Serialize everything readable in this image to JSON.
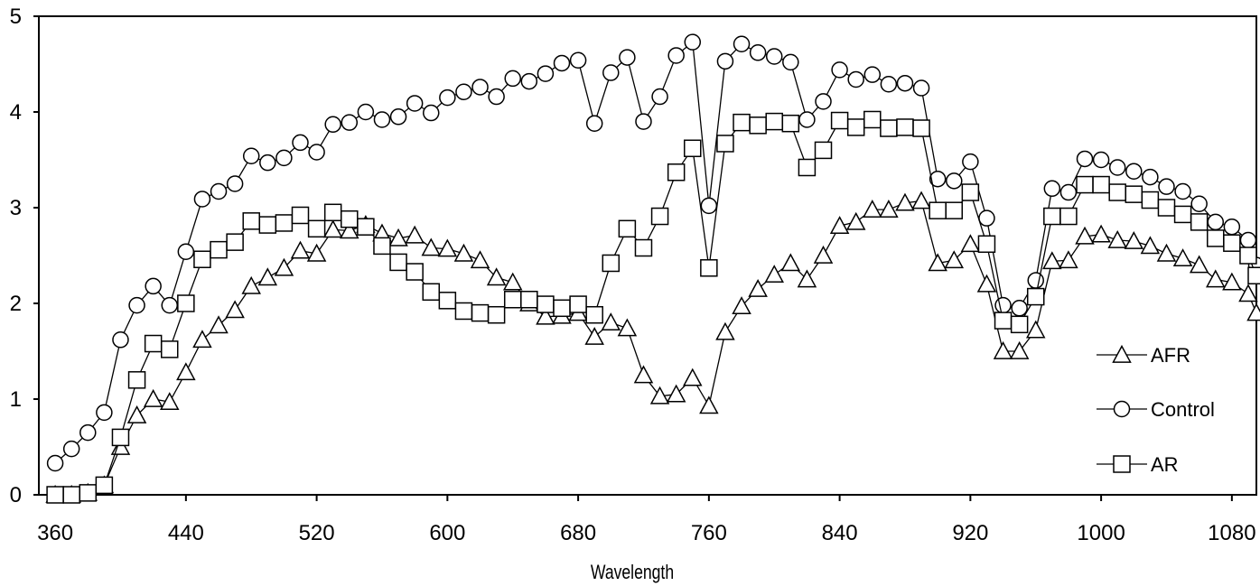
{
  "chart_data": {
    "type": "line",
    "title": "",
    "xlabel": "Wavelength",
    "ylabel": "",
    "xlim": [
      350,
      1095
    ],
    "ylim": [
      0,
      5
    ],
    "xticks": [
      360,
      440,
      520,
      600,
      680,
      760,
      840,
      920,
      1000,
      1080
    ],
    "yticks": [
      0,
      1,
      2,
      3,
      4,
      5
    ],
    "grid": false,
    "legend_position": "right",
    "series": [
      {
        "name": "AFR",
        "marker": "triangle",
        "x": [
          360,
          370,
          380,
          390,
          400,
          410,
          420,
          430,
          440,
          450,
          460,
          470,
          480,
          490,
          500,
          510,
          520,
          530,
          540,
          550,
          560,
          570,
          580,
          590,
          600,
          610,
          620,
          630,
          640,
          650,
          660,
          670,
          680,
          690,
          700,
          710,
          720,
          730,
          740,
          750,
          760,
          770,
          780,
          790,
          800,
          810,
          820,
          830,
          840,
          850,
          860,
          870,
          880,
          890,
          900,
          910,
          920,
          930,
          940,
          950,
          960,
          970,
          980,
          990,
          1000,
          1010,
          1020,
          1030,
          1040,
          1050,
          1060,
          1070,
          1080,
          1090,
          1095
        ],
        "y": [
          0.0,
          0.0,
          0.02,
          0.1,
          0.5,
          0.83,
          1.0,
          0.97,
          1.28,
          1.62,
          1.77,
          1.93,
          2.18,
          2.27,
          2.37,
          2.55,
          2.52,
          2.77,
          2.76,
          2.82,
          2.73,
          2.68,
          2.71,
          2.58,
          2.57,
          2.52,
          2.45,
          2.27,
          2.22,
          2.0,
          1.86,
          1.87,
          1.9,
          1.65,
          1.8,
          1.74,
          1.25,
          1.03,
          1.05,
          1.22,
          0.93,
          1.7,
          1.97,
          2.15,
          2.3,
          2.42,
          2.25,
          2.5,
          2.81,
          2.85,
          2.98,
          2.98,
          3.05,
          3.07,
          2.42,
          2.45,
          2.62,
          2.2,
          1.5,
          1.5,
          1.72,
          2.44,
          2.45,
          2.7,
          2.72,
          2.66,
          2.65,
          2.6,
          2.52,
          2.47,
          2.4,
          2.25,
          2.22,
          2.1,
          1.9
        ]
      },
      {
        "name": "Control",
        "marker": "circle",
        "x": [
          360,
          370,
          380,
          390,
          400,
          410,
          420,
          430,
          440,
          450,
          460,
          470,
          480,
          490,
          500,
          510,
          520,
          530,
          540,
          550,
          560,
          570,
          580,
          590,
          600,
          610,
          620,
          630,
          640,
          650,
          660,
          670,
          680,
          690,
          700,
          710,
          720,
          730,
          740,
          750,
          760,
          770,
          780,
          790,
          800,
          810,
          820,
          830,
          840,
          850,
          860,
          870,
          880,
          890,
          900,
          910,
          920,
          930,
          940,
          950,
          960,
          970,
          980,
          990,
          1000,
          1010,
          1020,
          1030,
          1040,
          1050,
          1060,
          1070,
          1080,
          1090,
          1095
        ],
        "y": [
          0.33,
          0.48,
          0.65,
          0.86,
          1.62,
          1.98,
          2.18,
          1.98,
          2.54,
          3.09,
          3.17,
          3.25,
          3.54,
          3.47,
          3.52,
          3.68,
          3.58,
          3.87,
          3.89,
          4.0,
          3.92,
          3.95,
          4.09,
          3.99,
          4.15,
          4.21,
          4.26,
          4.16,
          4.35,
          4.32,
          4.4,
          4.51,
          4.54,
          3.88,
          4.41,
          4.57,
          3.9,
          4.16,
          4.59,
          4.73,
          3.02,
          4.53,
          4.71,
          4.62,
          4.58,
          4.52,
          3.92,
          4.11,
          4.44,
          4.34,
          4.39,
          4.29,
          4.3,
          4.25,
          3.3,
          3.28,
          3.48,
          2.89,
          1.98,
          1.95,
          2.24,
          3.2,
          3.16,
          3.51,
          3.5,
          3.42,
          3.38,
          3.32,
          3.22,
          3.17,
          3.04,
          2.85,
          2.8,
          2.66,
          2.4
        ]
      },
      {
        "name": "AR",
        "marker": "square",
        "x": [
          360,
          370,
          380,
          390,
          400,
          410,
          420,
          430,
          440,
          450,
          460,
          470,
          480,
          490,
          500,
          510,
          520,
          530,
          540,
          550,
          560,
          570,
          580,
          590,
          600,
          610,
          620,
          630,
          640,
          650,
          660,
          670,
          680,
          690,
          700,
          710,
          720,
          730,
          740,
          750,
          760,
          770,
          780,
          790,
          800,
          810,
          820,
          830,
          840,
          850,
          860,
          870,
          880,
          890,
          900,
          910,
          920,
          930,
          940,
          950,
          960,
          970,
          980,
          990,
          1000,
          1010,
          1020,
          1030,
          1040,
          1050,
          1060,
          1070,
          1080,
          1090,
          1095
        ],
        "y": [
          0.0,
          0.0,
          0.02,
          0.1,
          0.6,
          1.2,
          1.58,
          1.52,
          2.0,
          2.46,
          2.56,
          2.64,
          2.86,
          2.82,
          2.84,
          2.92,
          2.78,
          2.95,
          2.88,
          2.8,
          2.6,
          2.43,
          2.33,
          2.12,
          2.03,
          1.92,
          1.9,
          1.88,
          2.04,
          2.04,
          1.99,
          1.95,
          1.99,
          1.88,
          2.42,
          2.78,
          2.58,
          2.91,
          3.37,
          3.62,
          2.37,
          3.67,
          3.89,
          3.86,
          3.9,
          3.88,
          3.42,
          3.6,
          3.91,
          3.84,
          3.92,
          3.83,
          3.84,
          3.83,
          2.97,
          2.97,
          3.16,
          2.62,
          1.82,
          1.78,
          2.07,
          2.91,
          2.91,
          3.24,
          3.24,
          3.16,
          3.14,
          3.08,
          3.0,
          2.93,
          2.85,
          2.68,
          2.63,
          2.5,
          2.29
        ]
      }
    ]
  }
}
